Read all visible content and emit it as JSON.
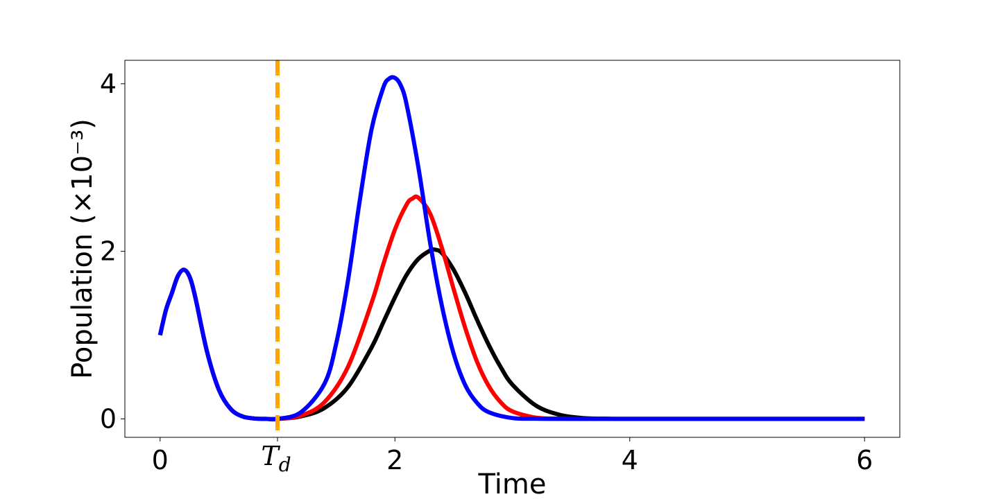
{
  "chart_data": {
    "type": "line",
    "xlabel": "Time",
    "ylabel": "Population (×10⁻³)",
    "xlim": [
      -0.3,
      6.3
    ],
    "ylim": [
      -0.22,
      4.28
    ],
    "xticks": [
      {
        "value": 0,
        "label": "0"
      },
      {
        "value": 2,
        "label": "2"
      },
      {
        "value": 4,
        "label": "4"
      },
      {
        "value": 6,
        "label": "6"
      }
    ],
    "yticks": [
      {
        "value": 0,
        "label": "0"
      },
      {
        "value": 2,
        "label": "2"
      },
      {
        "value": 4,
        "label": "4"
      }
    ],
    "vline": {
      "x": 1.0,
      "label": "T",
      "label_subscript": "d",
      "color": "#FFA500",
      "style": "dashed"
    },
    "grid": false,
    "series": [
      {
        "color": "#000000",
        "x": [
          0,
          0.05,
          0.1,
          0.15,
          0.2,
          0.25,
          0.3,
          0.4,
          0.5,
          0.6,
          0.7,
          0.8,
          0.9,
          1.0,
          1.2,
          1.4,
          1.6,
          1.8,
          1.9,
          2.0,
          2.1,
          2.2,
          2.3,
          2.34,
          2.4,
          2.5,
          2.6,
          2.7,
          2.8,
          2.9,
          3.0,
          3.2,
          3.4,
          3.6,
          3.8,
          4.0,
          5.0,
          6.0
        ],
        "y": [
          1.0,
          1.3,
          1.5,
          1.7,
          1.78,
          1.7,
          1.45,
          0.8,
          0.35,
          0.12,
          0.03,
          0.005,
          0.0,
          0.0,
          0.03,
          0.13,
          0.38,
          0.85,
          1.15,
          1.45,
          1.72,
          1.91,
          2.01,
          2.02,
          1.98,
          1.78,
          1.5,
          1.18,
          0.88,
          0.62,
          0.41,
          0.16,
          0.05,
          0.01,
          0.003,
          0.0,
          0.0,
          0.0
        ]
      },
      {
        "color": "#FF0000",
        "x": [
          0,
          0.05,
          0.1,
          0.15,
          0.2,
          0.25,
          0.3,
          0.4,
          0.5,
          0.6,
          0.7,
          0.8,
          0.9,
          1.0,
          1.2,
          1.4,
          1.6,
          1.8,
          1.9,
          2.0,
          2.1,
          2.15,
          2.2,
          2.3,
          2.4,
          2.5,
          2.6,
          2.7,
          2.8,
          2.9,
          3.0,
          3.2,
          3.4,
          3.6,
          3.8,
          4.0,
          5.0,
          6.0
        ],
        "y": [
          1.0,
          1.3,
          1.5,
          1.7,
          1.78,
          1.7,
          1.45,
          0.8,
          0.35,
          0.12,
          0.03,
          0.005,
          0.0,
          0.0,
          0.04,
          0.2,
          0.62,
          1.38,
          1.84,
          2.26,
          2.56,
          2.63,
          2.64,
          2.45,
          2.04,
          1.55,
          1.08,
          0.68,
          0.39,
          0.2,
          0.09,
          0.015,
          0.003,
          0.0,
          0.0,
          0.0,
          0.0,
          0.0
        ]
      },
      {
        "color": "#0000FF",
        "x": [
          0,
          0.05,
          0.1,
          0.15,
          0.2,
          0.25,
          0.3,
          0.4,
          0.5,
          0.6,
          0.7,
          0.8,
          0.9,
          1.0,
          1.2,
          1.4,
          1.5,
          1.6,
          1.7,
          1.8,
          1.9,
          1.95,
          2.0,
          2.05,
          2.1,
          2.2,
          2.3,
          2.4,
          2.5,
          2.6,
          2.7,
          2.8,
          3.0,
          3.2,
          3.4,
          3.6,
          4.0,
          5.0,
          6.0
        ],
        "y": [
          1.0,
          1.3,
          1.5,
          1.7,
          1.78,
          1.7,
          1.45,
          0.8,
          0.35,
          0.12,
          0.03,
          0.005,
          0.0,
          0.0,
          0.08,
          0.42,
          0.9,
          1.65,
          2.6,
          3.45,
          3.95,
          4.06,
          4.07,
          3.98,
          3.75,
          3.0,
          2.1,
          1.35,
          0.78,
          0.4,
          0.19,
          0.08,
          0.01,
          0.002,
          0.0,
          0.0,
          0.0,
          0.0,
          0.0
        ]
      }
    ]
  }
}
